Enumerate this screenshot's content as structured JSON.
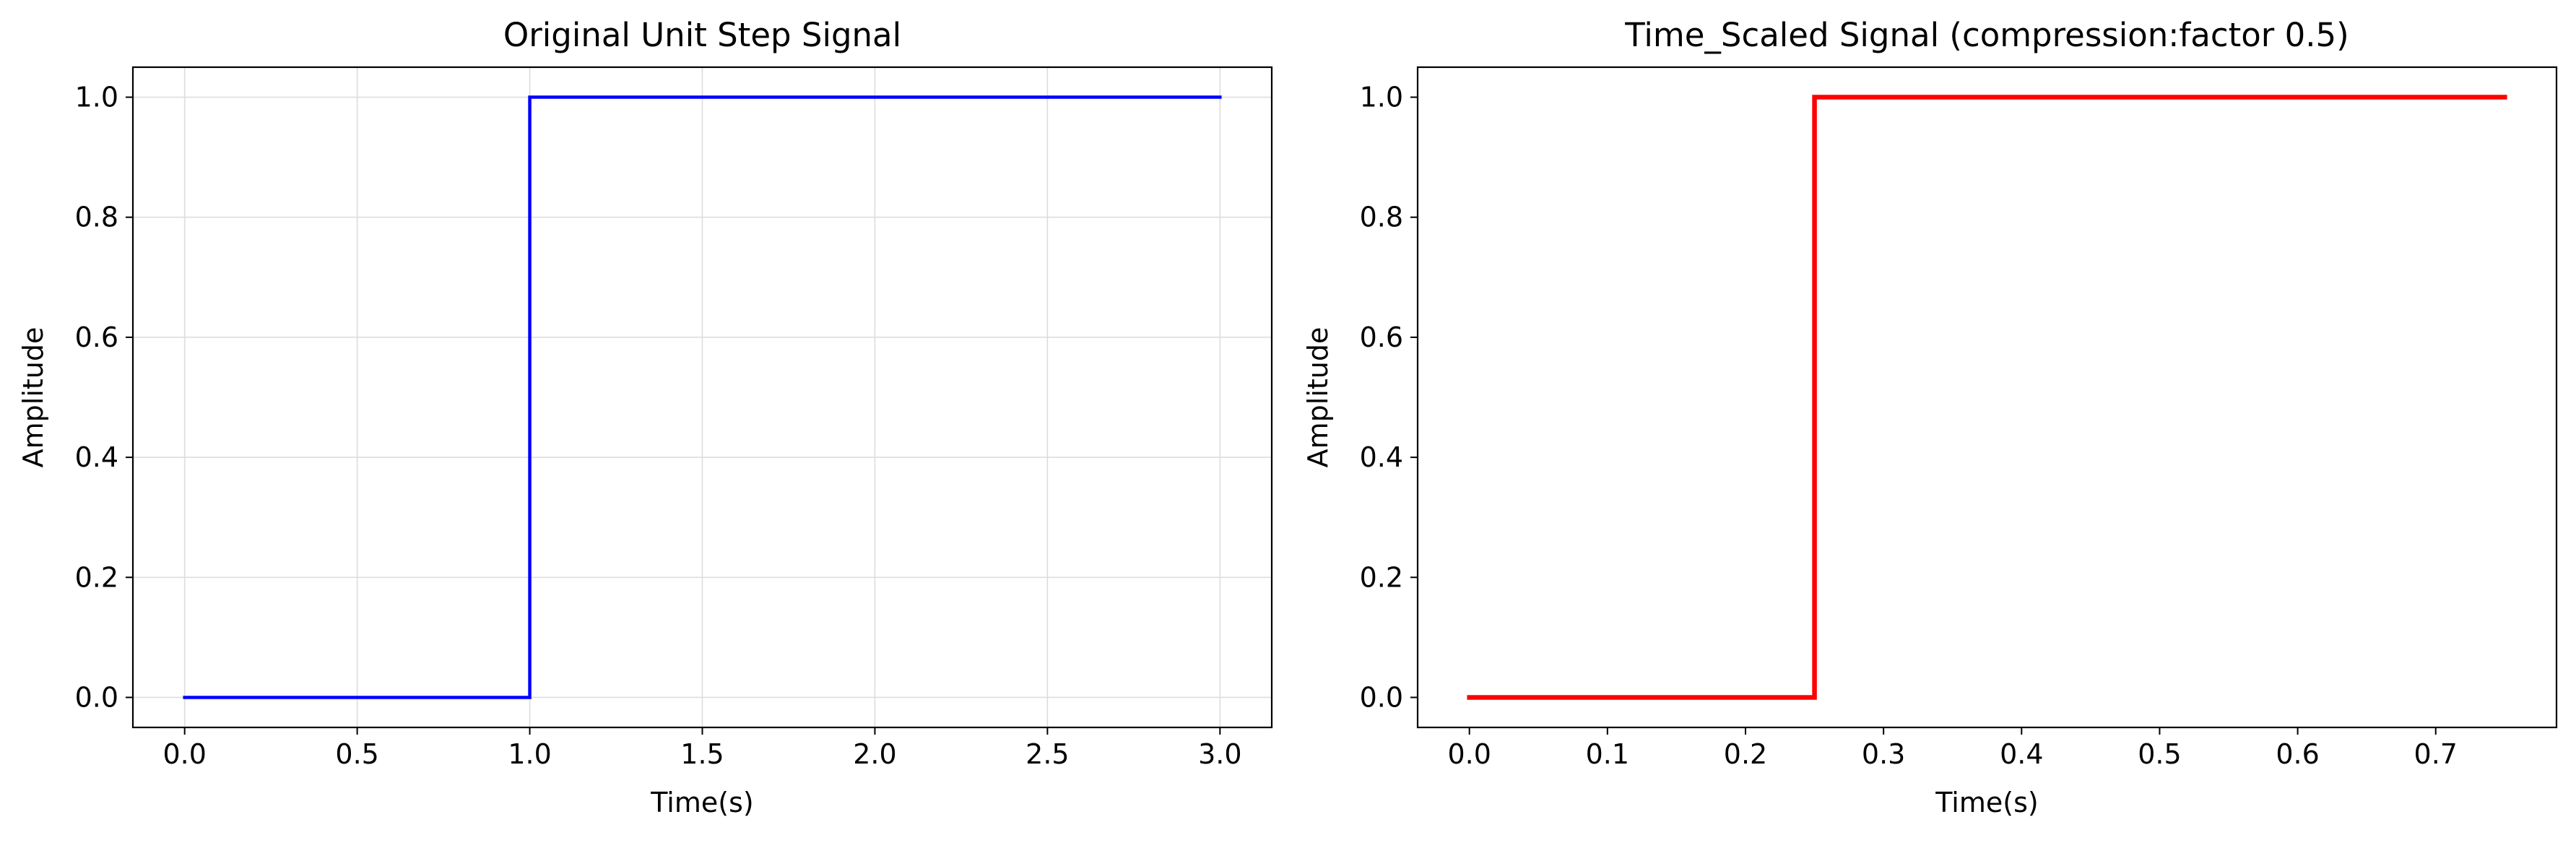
{
  "chart_data": [
    {
      "type": "line",
      "title": "Original Unit Step Signal",
      "xlabel": "Time(s)",
      "ylabel": "Amplitude",
      "xlim": [
        -0.15,
        3.15
      ],
      "ylim": [
        -0.05,
        1.05
      ],
      "xticks": [
        0.0,
        0.5,
        1.0,
        1.5,
        2.0,
        2.5,
        3.0
      ],
      "xtick_labels": [
        "0.0",
        "0.5",
        "1.0",
        "1.5",
        "2.0",
        "2.5",
        "3.0"
      ],
      "yticks": [
        0.0,
        0.2,
        0.4,
        0.6,
        0.8,
        1.0
      ],
      "ytick_labels": [
        "0.0",
        "0.2",
        "0.4",
        "0.6",
        "0.8",
        "1.0"
      ],
      "grid": true,
      "series": [
        {
          "color": "#0000ff",
          "step": true,
          "points": [
            [
              0.0,
              0.0
            ],
            [
              1.0,
              0.0
            ],
            [
              1.0,
              1.0
            ],
            [
              3.0,
              1.0
            ]
          ]
        }
      ]
    },
    {
      "type": "line",
      "title": "Time_Scaled Signal (compression:factor 0.5)",
      "xlabel": "Time(s)",
      "ylabel": "Amplitude",
      "xlim": [
        -0.0375,
        0.7875
      ],
      "ylim": [
        -0.05,
        1.05
      ],
      "xticks": [
        0.0,
        0.1,
        0.2,
        0.3,
        0.4,
        0.5,
        0.6,
        0.7
      ],
      "xtick_labels": [
        "0.0",
        "0.1",
        "0.2",
        "0.3",
        "0.4",
        "0.5",
        "0.6",
        "0.7"
      ],
      "yticks": [
        0.0,
        0.2,
        0.4,
        0.6,
        0.8,
        1.0
      ],
      "ytick_labels": [
        "0.0",
        "0.2",
        "0.4",
        "0.6",
        "0.8",
        "1.0"
      ],
      "grid": false,
      "series": [
        {
          "color": "#ff0000",
          "step": true,
          "points": [
            [
              0.0,
              0.0
            ],
            [
              0.25,
              0.0
            ],
            [
              0.25,
              1.0
            ],
            [
              0.75,
              1.0
            ]
          ]
        }
      ]
    }
  ]
}
